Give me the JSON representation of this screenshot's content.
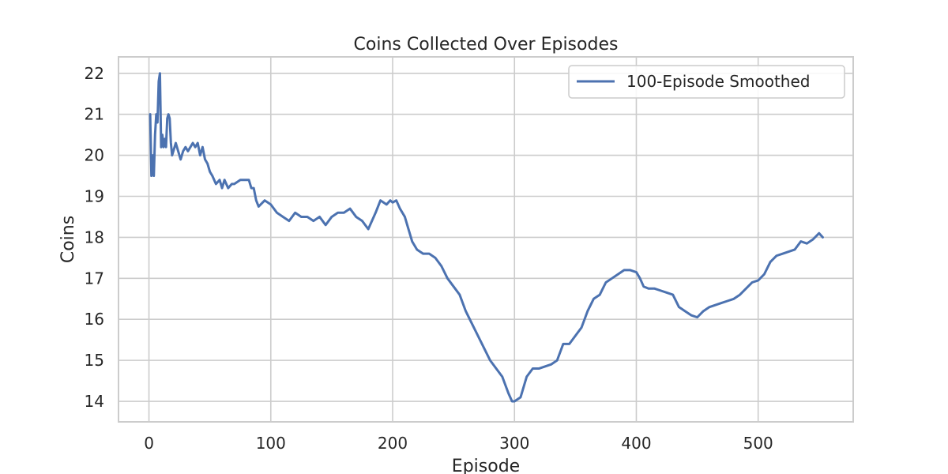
{
  "chart_data": {
    "type": "line",
    "title": "Coins Collected Over Episodes",
    "xlabel": "Episode",
    "ylabel": "Coins",
    "xlim": [
      -25,
      578
    ],
    "ylim": [
      13.5,
      22.4
    ],
    "xticks": [
      0,
      100,
      200,
      300,
      400,
      500
    ],
    "yticks": [
      14,
      15,
      16,
      17,
      18,
      19,
      20,
      21,
      22
    ],
    "grid": true,
    "legend_position": "top-right",
    "series": [
      {
        "name": "100-Episode Smoothed",
        "color": "#4c72b0",
        "x": [
          1,
          2,
          3,
          4,
          5,
          6,
          7,
          8,
          9,
          10,
          11,
          12,
          13,
          14,
          15,
          16,
          17,
          18,
          19,
          20,
          22,
          24,
          26,
          28,
          30,
          32,
          34,
          36,
          38,
          40,
          42,
          44,
          46,
          48,
          50,
          52,
          55,
          58,
          60,
          62,
          65,
          68,
          70,
          75,
          80,
          82,
          84,
          86,
          88,
          90,
          95,
          100,
          105,
          110,
          115,
          120,
          125,
          130,
          135,
          140,
          145,
          150,
          155,
          160,
          165,
          170,
          175,
          180,
          183,
          186,
          190,
          195,
          198,
          200,
          203,
          206,
          210,
          213,
          216,
          220,
          225,
          230,
          235,
          240,
          245,
          250,
          255,
          260,
          265,
          270,
          275,
          280,
          285,
          290,
          295,
          298,
          300,
          305,
          310,
          315,
          320,
          325,
          330,
          335,
          340,
          345,
          350,
          355,
          360,
          365,
          370,
          375,
          380,
          385,
          390,
          395,
          400,
          403,
          406,
          410,
          415,
          420,
          425,
          430,
          435,
          440,
          445,
          450,
          455,
          460,
          465,
          470,
          475,
          480,
          485,
          490,
          495,
          500,
          505,
          510,
          515,
          520,
          525,
          530,
          535,
          540,
          545,
          550,
          553
        ],
        "values": [
          21.0,
          19.5,
          20.0,
          19.5,
          20.5,
          21.0,
          20.8,
          21.8,
          22.0,
          20.2,
          20.5,
          20.2,
          20.4,
          20.2,
          20.9,
          21.0,
          20.9,
          20.3,
          20.0,
          20.1,
          20.3,
          20.1,
          19.9,
          20.1,
          20.2,
          20.1,
          20.2,
          20.3,
          20.2,
          20.3,
          20.0,
          20.2,
          19.9,
          19.8,
          19.6,
          19.5,
          19.3,
          19.4,
          19.2,
          19.4,
          19.2,
          19.3,
          19.3,
          19.4,
          19.4,
          19.4,
          19.2,
          19.2,
          18.9,
          18.75,
          18.9,
          18.8,
          18.6,
          18.5,
          18.4,
          18.6,
          18.5,
          18.5,
          18.4,
          18.5,
          18.3,
          18.5,
          18.6,
          18.6,
          18.7,
          18.5,
          18.4,
          18.2,
          18.4,
          18.6,
          18.9,
          18.8,
          18.9,
          18.85,
          18.9,
          18.7,
          18.5,
          18.2,
          17.9,
          17.7,
          17.6,
          17.6,
          17.5,
          17.3,
          17.0,
          16.8,
          16.6,
          16.2,
          15.9,
          15.6,
          15.3,
          15.0,
          14.8,
          14.6,
          14.2,
          14.0,
          14.0,
          14.1,
          14.6,
          14.8,
          14.8,
          14.85,
          14.9,
          15.0,
          15.4,
          15.4,
          15.6,
          15.8,
          16.2,
          16.5,
          16.6,
          16.9,
          17.0,
          17.1,
          17.2,
          17.2,
          17.15,
          17.0,
          16.8,
          16.75,
          16.75,
          16.7,
          16.65,
          16.6,
          16.3,
          16.2,
          16.1,
          16.05,
          16.2,
          16.3,
          16.35,
          16.4,
          16.45,
          16.5,
          16.6,
          16.75,
          16.9,
          16.95,
          17.1,
          17.4,
          17.55,
          17.6,
          17.65,
          17.7,
          17.9,
          17.85,
          17.95,
          18.1,
          18.0
        ]
      }
    ]
  }
}
